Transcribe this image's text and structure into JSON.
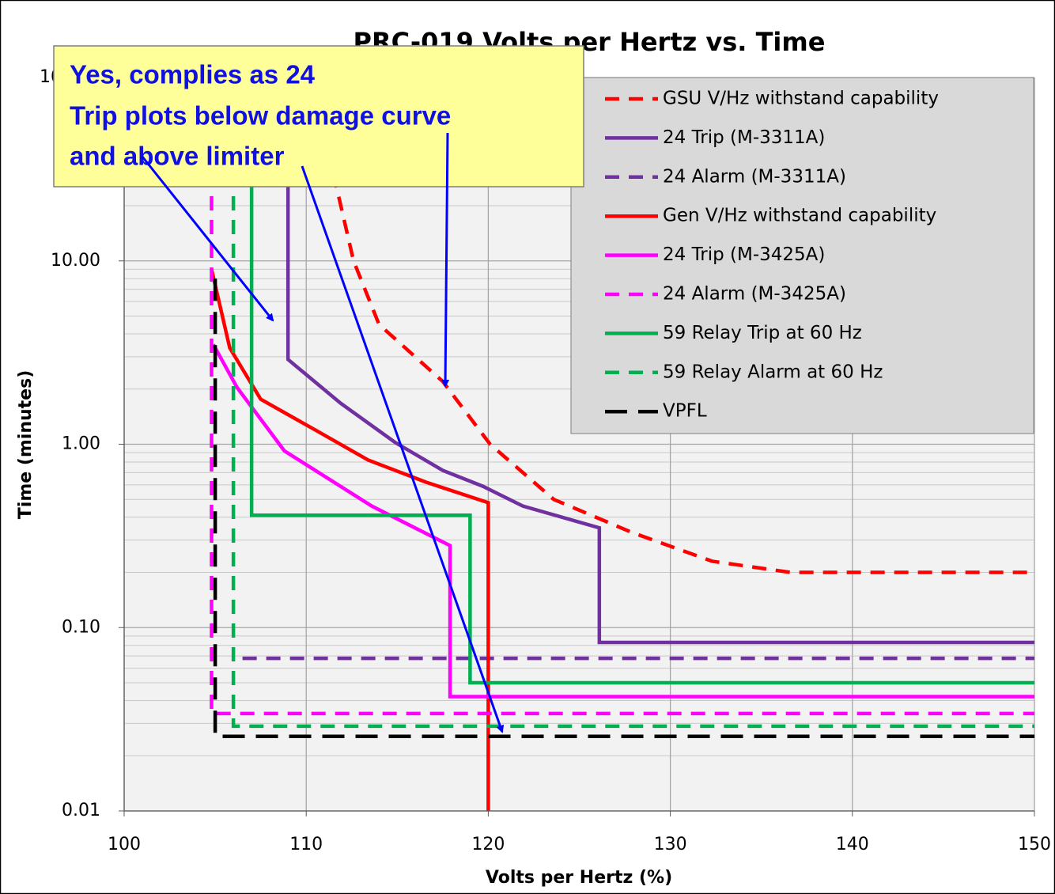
{
  "chart_data": {
    "type": "line",
    "title": "PRC-019 Volts per Hertz vs. Time",
    "xlabel": "Volts per Hertz (%)",
    "ylabel": "Time (minutes)",
    "xlim": [
      100,
      150
    ],
    "xticks": [
      100,
      110,
      120,
      130,
      140,
      150
    ],
    "ylim": [
      0.01,
      100
    ],
    "yscale": "log",
    "yticks": [
      {
        "value": 0.01,
        "label": "0.01"
      },
      {
        "value": 0.1,
        "label": "0.10"
      },
      {
        "value": 1,
        "label": "1.00"
      },
      {
        "value": 10,
        "label": "10.00"
      },
      {
        "value": 100,
        "label": "100.00"
      }
    ],
    "grid": true,
    "minor_grid": true,
    "legend": "upper right",
    "annotation": [
      "Yes, complies as 24",
      "Trip plots below damage curve",
      "and above limiter"
    ],
    "series": [
      {
        "name": "GSU V/Hz withstand capability",
        "color": "#ff0000",
        "style": "dashed",
        "x": [
          111.2,
          112.6,
          114,
          117.5,
          120.1,
          123.6,
          127.9,
          132.3,
          136.6,
          150
        ],
        "values": [
          40,
          10,
          4.5,
          2.2,
          1.0,
          0.5,
          0.33,
          0.23,
          0.2,
          0.2
        ]
      },
      {
        "name": "24 Trip (M-3311A)",
        "color": "#7030a0",
        "style": "solid",
        "x": [
          109,
          109,
          111.9,
          114.9,
          117.5,
          119.7,
          121.9,
          126.1,
          126.1,
          150
        ],
        "values": [
          100,
          2.9,
          1.67,
          1.02,
          0.72,
          0.59,
          0.46,
          0.35,
          0.083,
          0.083
        ]
      },
      {
        "name": "24 Alarm (M-3311A)",
        "color": "#7030a0",
        "style": "dashed",
        "x": [
          106.5,
          150
        ],
        "values": [
          0.068,
          0.068
        ]
      },
      {
        "name": "Gen V/Hz withstand capability",
        "color": "#ff0000",
        "style": "solid",
        "x": [
          104.8,
          105.8,
          107.5,
          110.6,
          113.4,
          116.6,
          120,
          120
        ],
        "values": [
          9,
          3.35,
          1.76,
          1.18,
          0.82,
          0.62,
          0.48,
          0.01
        ]
      },
      {
        "name": "24 Trip (M-3425A)",
        "color": "#ff00ff",
        "style": "solid",
        "x": [
          104.9,
          106.2,
          108.8,
          113.6,
          117.9,
          117.9,
          150
        ],
        "values": [
          3.5,
          2.04,
          0.92,
          0.46,
          0.28,
          0.042,
          0.042
        ]
      },
      {
        "name": "24 Alarm (M-3425A)",
        "color": "#ff00ff",
        "style": "dashed",
        "x": [
          104.8,
          104.8,
          150
        ],
        "values": [
          100,
          0.034,
          0.034
        ]
      },
      {
        "name": "59 Relay Trip at 60 Hz",
        "color": "#00b050",
        "style": "solid",
        "x": [
          107,
          107,
          119,
          119,
          150
        ],
        "values": [
          100,
          0.41,
          0.41,
          0.05,
          0.05
        ]
      },
      {
        "name": "59 Relay Alarm at 60 Hz",
        "color": "#00b050",
        "style": "dashed",
        "x": [
          106,
          106,
          150
        ],
        "values": [
          100,
          0.029,
          0.029
        ]
      },
      {
        "name": "VPFL",
        "color": "#000000",
        "style": "longdash",
        "x": [
          105,
          105,
          150
        ],
        "values": [
          8,
          0.0255,
          0.0255
        ]
      }
    ]
  }
}
